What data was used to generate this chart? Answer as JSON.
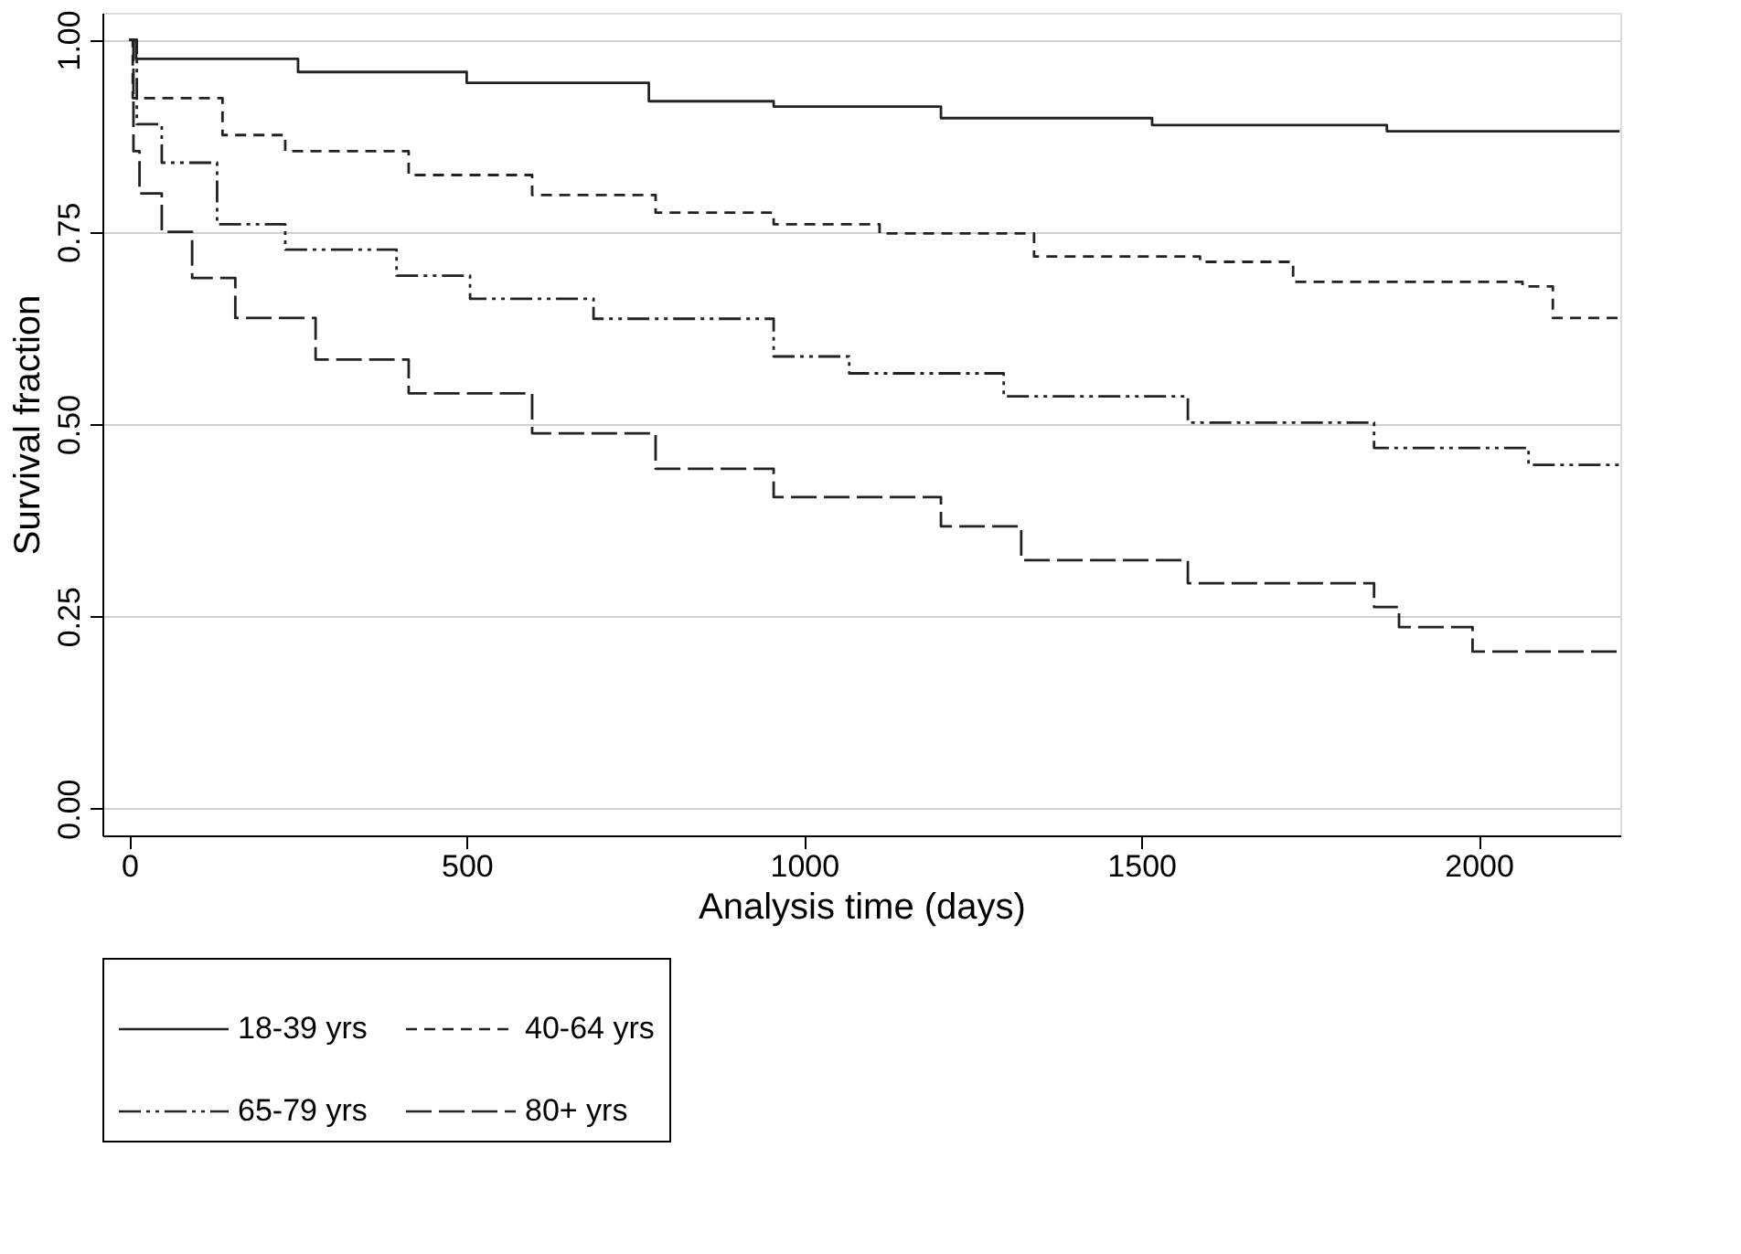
{
  "chart_data": {
    "type": "step",
    "xlabel": "Analysis time (days)",
    "ylabel": "Survival fraction",
    "xlim": [
      -40,
      2210
    ],
    "xticks": [
      0,
      500,
      1000,
      1500,
      2000
    ],
    "ylim": [
      -0.035,
      1.035
    ],
    "yticks": [
      {
        "value": 0,
        "label": "0.00"
      },
      {
        "value": 0.25,
        "label": "0.25"
      },
      {
        "value": 0.5,
        "label": "0.50"
      },
      {
        "value": 0.75,
        "label": "0.75"
      },
      {
        "value": 1,
        "label": "1.00"
      }
    ],
    "grid": "y",
    "legend": "bottom",
    "marker": "none",
    "series": [
      {
        "name": "18-39 yrs",
        "color": "#222222",
        "line_style": "solid",
        "x": [
          0,
          10,
          250,
          500,
          770,
          955,
          1203,
          1516,
          1864,
          2209
        ],
        "values": [
          1.0,
          0.975,
          0.958,
          0.944,
          0.92,
          0.913,
          0.898,
          0.889,
          0.881,
          0.881
        ]
      },
      {
        "name": "40-64 yrs",
        "color": "#222222",
        "line_style": "dashed",
        "x": [
          0,
          5,
          138,
          231,
          414,
          597,
          780,
          955,
          1112,
          1341,
          1587,
          1725,
          2065,
          2110,
          2209
        ],
        "values": [
          1.0,
          0.924,
          0.876,
          0.855,
          0.824,
          0.798,
          0.775,
          0.76,
          0.748,
          0.718,
          0.711,
          0.685,
          0.679,
          0.638,
          0.635
        ]
      },
      {
        "name": "65-79 yrs",
        "color": "#222222",
        "line_style": "dashdot",
        "x": [
          0,
          11,
          48,
          130,
          231,
          396,
          505,
          688,
          955,
          1067,
          1296,
          1569,
          1845,
          2074,
          2209
        ],
        "values": [
          1.0,
          0.89,
          0.84,
          0.76,
          0.727,
          0.693,
          0.663,
          0.637,
          0.588,
          0.566,
          0.536,
          0.502,
          0.469,
          0.447,
          0.445
        ]
      },
      {
        "name": "80+ yrs",
        "color": "#222222",
        "line_style": "longdash",
        "x": [
          0,
          6,
          15,
          48,
          93,
          157,
          276,
          414,
          597,
          780,
          955,
          1203,
          1322,
          1569,
          1845,
          1882,
          1991,
          2209
        ],
        "values": [
          1.0,
          0.855,
          0.8,
          0.75,
          0.69,
          0.638,
          0.584,
          0.54,
          0.488,
          0.442,
          0.405,
          0.367,
          0.323,
          0.293,
          0.262,
          0.236,
          0.204,
          0.204
        ]
      }
    ]
  }
}
